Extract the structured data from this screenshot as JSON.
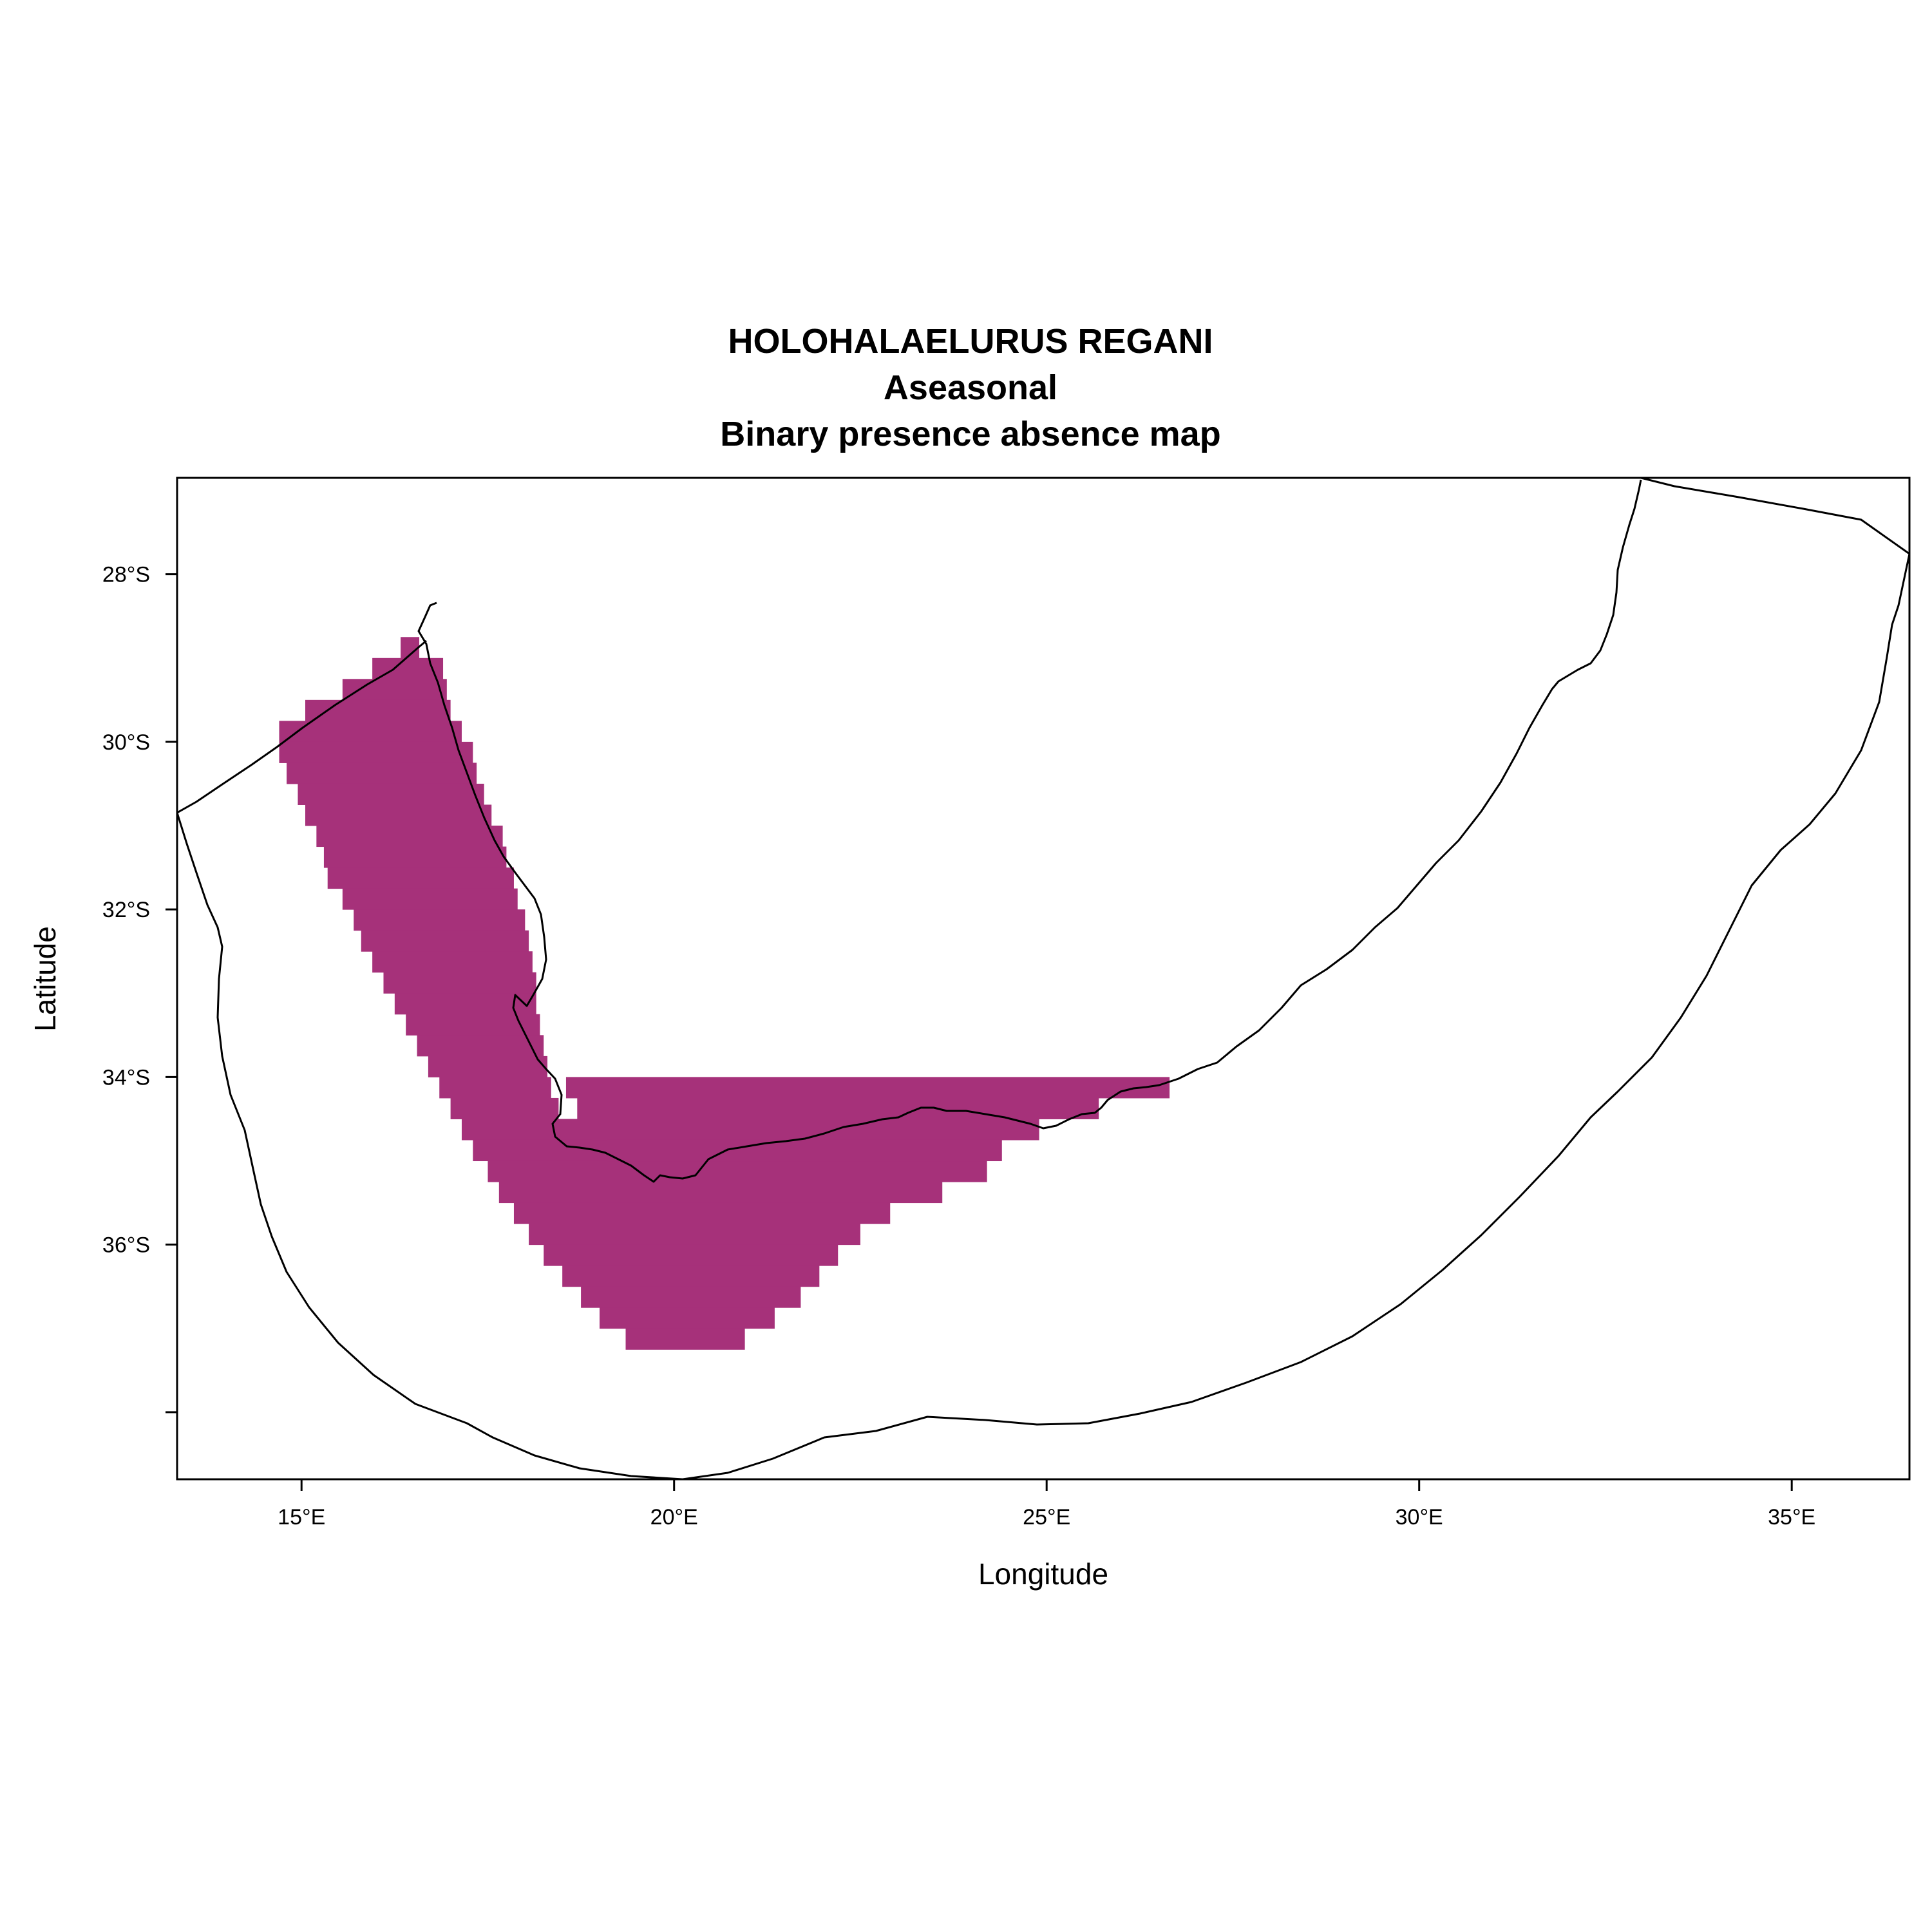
{
  "map": {
    "title_lines": [
      "HOLOHALAELURUS REGANI",
      "Aseasonal",
      "Binary presence absence map"
    ],
    "x_axis": {
      "label": "Longitude",
      "range": [
        13.33,
        36.58
      ],
      "ticks": [
        {
          "value": 15,
          "label": "15°E"
        },
        {
          "value": 20,
          "label": "20°E"
        },
        {
          "value": 25,
          "label": "25°E"
        },
        {
          "value": 30,
          "label": "30°E"
        },
        {
          "value": 35,
          "label": "35°E"
        }
      ]
    },
    "y_axis": {
      "label": "Latitude",
      "range": [
        -38.8,
        -26.85
      ],
      "ticks": [
        {
          "value": -28,
          "label": "28°S"
        },
        {
          "value": -30,
          "label": "30°S"
        },
        {
          "value": -32,
          "label": "32°S"
        },
        {
          "value": -34,
          "label": "34°S"
        },
        {
          "value": -36,
          "label": "36°S"
        },
        {
          "value": -38,
          "label": ""
        }
      ]
    },
    "presence_color": "#a6317a",
    "line_color": "#000000",
    "grid": false,
    "legend": "none",
    "cell_size_deg": 0.25,
    "presence_rows": [
      [
        -28.875,
        16.33,
        16.58
      ],
      [
        -29.125,
        15.95,
        16.9
      ],
      [
        -29.375,
        15.55,
        16.95
      ],
      [
        -29.625,
        15.05,
        17.0
      ],
      [
        -29.875,
        14.7,
        17.15
      ],
      [
        -30.125,
        14.7,
        17.3
      ],
      [
        -30.375,
        14.8,
        17.35
      ],
      [
        -30.625,
        14.95,
        17.45
      ],
      [
        -30.875,
        15.05,
        17.55
      ],
      [
        -31.125,
        15.2,
        17.7
      ],
      [
        -31.375,
        15.3,
        17.75
      ],
      [
        -31.625,
        15.35,
        17.85
      ],
      [
        -31.875,
        15.55,
        17.9
      ],
      [
        -32.125,
        15.7,
        18.0
      ],
      [
        -32.375,
        15.8,
        18.05
      ],
      [
        -32.625,
        15.95,
        18.1
      ],
      [
        -32.875,
        16.1,
        18.15
      ],
      [
        -33.125,
        16.25,
        18.15
      ],
      [
        -33.375,
        16.4,
        18.2
      ],
      [
        -33.625,
        16.55,
        18.25
      ],
      [
        -33.875,
        16.7,
        18.3
      ],
      [
        -34.125,
        16.85,
        18.35
      ],
      [
        -34.375,
        17.0,
        18.45
      ],
      [
        -34.625,
        17.15,
        19.2
      ],
      [
        -34.875,
        17.3,
        19.6
      ],
      [
        -35.125,
        17.5,
        24.2
      ],
      [
        -35.375,
        17.65,
        23.6
      ],
      [
        -35.625,
        17.85,
        22.9
      ],
      [
        -35.875,
        18.05,
        22.5
      ],
      [
        -36.125,
        18.25,
        22.2
      ],
      [
        -36.375,
        18.5,
        21.95
      ],
      [
        -36.625,
        18.75,
        21.7
      ],
      [
        -36.875,
        19.0,
        21.35
      ],
      [
        -37.125,
        19.35,
        20.95
      ]
    ],
    "presence_east_rows": [
      [
        -34.125,
        18.55,
        26.65
      ],
      [
        -34.375,
        18.7,
        25.7
      ],
      [
        -34.625,
        18.9,
        24.9
      ],
      [
        -34.875,
        19.1,
        24.4
      ]
    ]
  }
}
